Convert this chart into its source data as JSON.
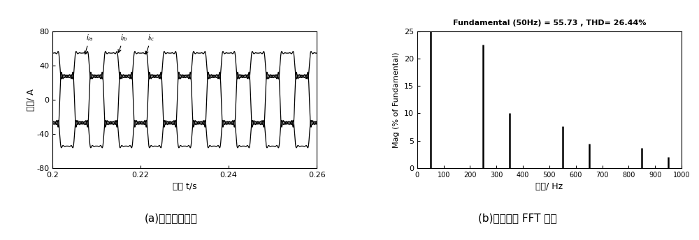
{
  "left_xlim": [
    0.2,
    0.26
  ],
  "left_ylim": [
    -80,
    80
  ],
  "left_yticks": [
    -80,
    -40,
    0,
    40,
    80
  ],
  "left_xticks": [
    0.2,
    0.22,
    0.24,
    0.26
  ],
  "left_xlabel": "时间 t/s",
  "left_ylabel": "电流/ A",
  "right_xlim": [
    0,
    1000
  ],
  "right_ylim": [
    0,
    25
  ],
  "right_yticks": [
    0,
    5,
    10,
    15,
    20,
    25
  ],
  "right_xticks": [
    0,
    100,
    200,
    300,
    400,
    500,
    600,
    700,
    800,
    900,
    1000
  ],
  "right_xlabel": "频率/ Hz",
  "right_ylabel": "Mag (% of Fundamental)",
  "right_title": "Fundamental (50Hz) = 55.73 , THD= 26.44%",
  "fft_freqs": [
    50,
    250,
    350,
    550,
    650,
    850,
    950
  ],
  "fft_mags": [
    100,
    22.5,
    10.0,
    7.6,
    4.5,
    3.7,
    2.0
  ],
  "bottom_label_left": "(a)负荷电流波形",
  "bottom_label_right": "(b)谐波含量 FFT 分析",
  "bg_color": "#ffffff",
  "line_color": "#000000",
  "n_points": 8000
}
